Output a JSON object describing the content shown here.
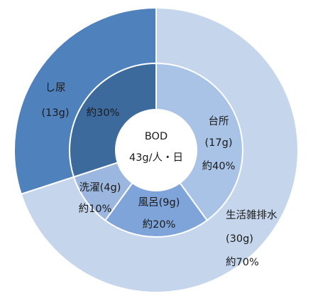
{
  "chart_data": {
    "type": "pie",
    "center_label": [
      "BOD",
      "43g/人・日"
    ],
    "outer": [
      {
        "label": "し尿",
        "amount": "(13g)",
        "value": 30,
        "color": "#4f81bd"
      },
      {
        "label": "生活雑排水",
        "amount": "(30g)",
        "percent_label": "約70%",
        "value": 70,
        "color": "#c5d6ec"
      }
    ],
    "inner": [
      {
        "label": "し尿",
        "percent_label": "約30%",
        "value": 30,
        "color": "#3d6a9c"
      },
      {
        "label": "台所",
        "amount": "(17g)",
        "percent_label": "約40%",
        "value": 40,
        "color": "#a9c3e6"
      },
      {
        "label": "風呂(9g)",
        "percent_label": "約20%",
        "value": 20,
        "color": "#7ea4d9"
      },
      {
        "label": "洗濯(4g)",
        "percent_label": "約10%",
        "value": 10,
        "color": "#9bb6df"
      }
    ]
  }
}
